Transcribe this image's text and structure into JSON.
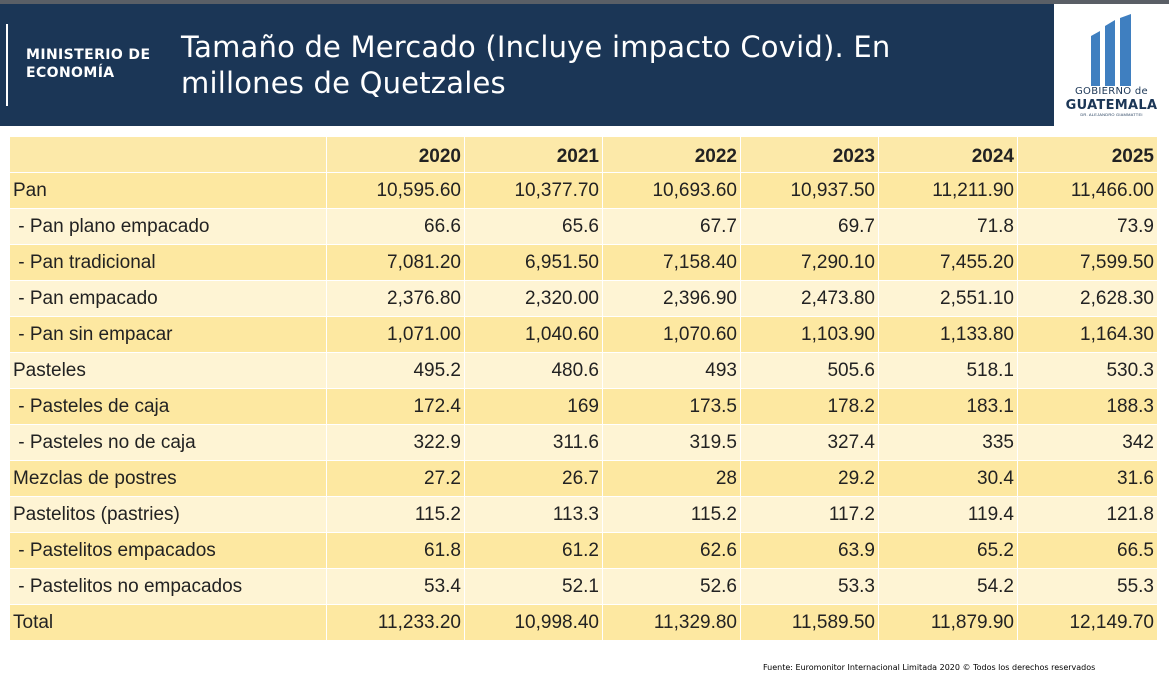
{
  "header": {
    "ministry_line1": "MINISTERIO DE",
    "ministry_line2": "ECONOMÍA",
    "title_line1": "Tamaño de Mercado (Incluye impacto Covid).  En",
    "title_line2": "millones de Quetzales",
    "logo_line1": "GOBIERNO de",
    "logo_line2": "GUATEMALA",
    "logo_line3": "DR. ALEJANDRO GIAMMATTEI",
    "background_color": "#1b3656"
  },
  "table": {
    "corner": "",
    "years": [
      "2020",
      "2021",
      "2022",
      "2023",
      "2024",
      "2025"
    ],
    "rows": [
      {
        "label": "Pan",
        "values": [
          "10,595.60",
          "10,377.70",
          "10,693.60",
          "10,937.50",
          "11,211.90",
          "11,466.00"
        ]
      },
      {
        "label": " - Pan plano empacado",
        "values": [
          "66.6",
          "65.6",
          "67.7",
          "69.7",
          "71.8",
          "73.9"
        ]
      },
      {
        "label": " - Pan tradicional",
        "values": [
          "7,081.20",
          "6,951.50",
          "7,158.40",
          "7,290.10",
          "7,455.20",
          "7,599.50"
        ]
      },
      {
        "label": " - Pan empacado",
        "values": [
          "2,376.80",
          "2,320.00",
          "2,396.90",
          "2,473.80",
          "2,551.10",
          "2,628.30"
        ]
      },
      {
        "label": " - Pan sin empacar",
        "values": [
          "1,071.00",
          "1,040.60",
          "1,070.60",
          "1,103.90",
          "1,133.80",
          "1,164.30"
        ]
      },
      {
        "label": "Pasteles",
        "values": [
          "495.2",
          "480.6",
          "493",
          "505.6",
          "518.1",
          "530.3"
        ]
      },
      {
        "label": " - Pasteles de caja",
        "values": [
          "172.4",
          "169",
          "173.5",
          "178.2",
          "183.1",
          "188.3"
        ]
      },
      {
        "label": " - Pasteles no de caja",
        "values": [
          "322.9",
          "311.6",
          "319.5",
          "327.4",
          "335",
          "342"
        ]
      },
      {
        "label": "Mezclas de postres",
        "values": [
          "27.2",
          "26.7",
          "28",
          "29.2",
          "30.4",
          "31.6"
        ]
      },
      {
        "label": "Pastelitos (pastries)",
        "values": [
          "115.2",
          "113.3",
          "115.2",
          "117.2",
          "119.4",
          "121.8"
        ]
      },
      {
        "label": " - Pastelitos empacados",
        "values": [
          "61.8",
          "61.2",
          "62.6",
          "63.9",
          "65.2",
          "66.5"
        ]
      },
      {
        "label": " - Pastelitos no empacados",
        "values": [
          "53.4",
          "52.1",
          "52.6",
          "53.3",
          "54.2",
          "55.3"
        ]
      },
      {
        "label": "Total",
        "values": [
          "11,233.20",
          "10,998.40",
          "11,329.80",
          "11,589.50",
          "11,879.90",
          "12,149.70"
        ]
      }
    ],
    "colors": {
      "band_dark": "#fde8a1",
      "band_light": "#fef4d4"
    }
  },
  "footer": {
    "source": "Fuente:  Euromonitor Internacional Limitada 2020 © Todos los derechos reservados"
  }
}
